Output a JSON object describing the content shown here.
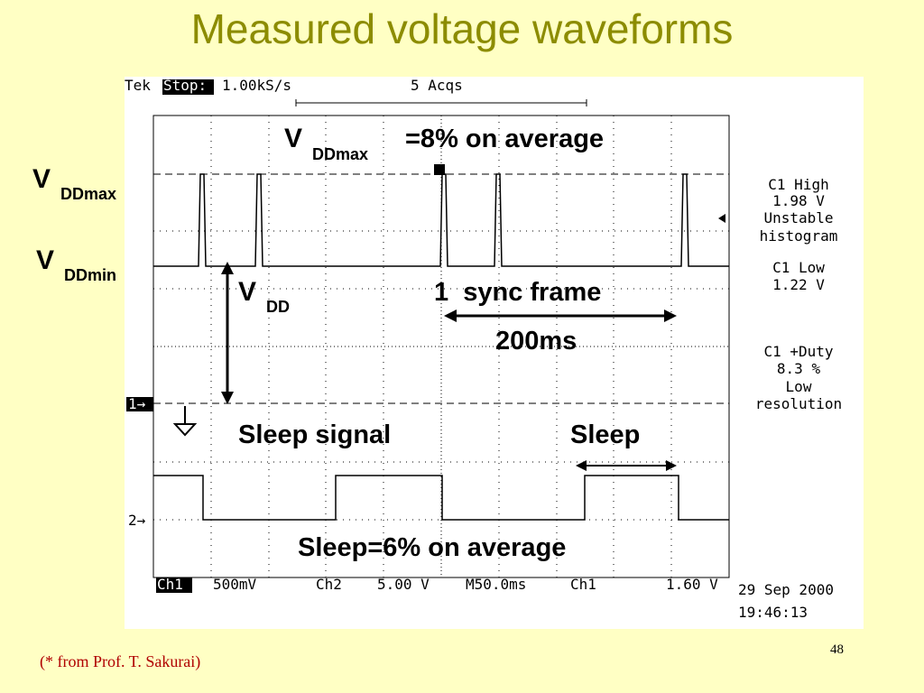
{
  "header": {
    "title": "Measured voltage waveforms"
  },
  "scope": {
    "brand": "Tek",
    "state": "Stop:",
    "rate": "1.00kS/s",
    "acqs": "5 Acqs",
    "ch1_marker": "1→",
    "ch2_marker": "2→",
    "readouts": [
      "C1 High",
      "1.98 V",
      "Unstable",
      "histogram",
      "C1 Low",
      "1.22 V",
      "C1 +Duty",
      "8.3 %",
      "Low",
      "resolution"
    ],
    "footer": {
      "ch1": "Ch1",
      "ch1_scale": "500mV",
      "ch2": "Ch2",
      "ch2_scale": "5.00 V",
      "time": "M50.0ms",
      "trigger_src": "Ch1",
      "trigger_level": "1.60 V",
      "date": "29 Sep 2000",
      "clock": "19:46:13"
    }
  },
  "annotations": {
    "vddmax_top": {
      "v": "V",
      "sub": "DDmax",
      "text": "=8% on average"
    },
    "vddmax_left": {
      "v": "V",
      "sub": "DDmax"
    },
    "vddmin_left": {
      "v": "V",
      "sub": "DDmin"
    },
    "vdd": {
      "v": "V",
      "sub": "DD"
    },
    "sync_frame": "1  sync frame",
    "period": "200ms",
    "sleep_signal": "Sleep signal",
    "sleep": "Sleep",
    "sleep_avg": "Sleep=6% on average"
  },
  "footnote": "(* from Prof. T. Sakurai)",
  "page_number": "48"
}
